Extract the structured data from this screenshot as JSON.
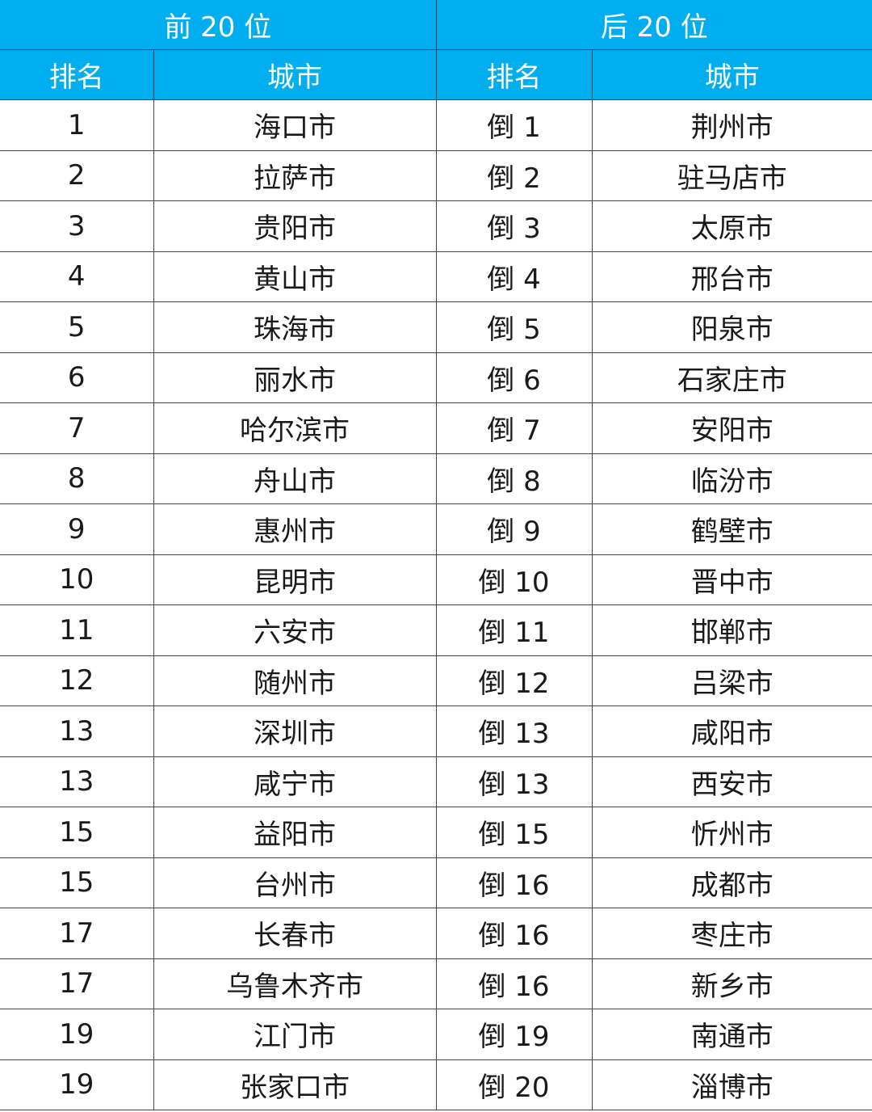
{
  "header": {
    "top_group": "前 20 位",
    "bottom_group": "后 20 位",
    "rank": "排名",
    "city": "城市"
  },
  "colors": {
    "header_bg": "#00aeef",
    "header_text": "#ffffff"
  },
  "rows": [
    {
      "top_rank": "1",
      "top_city": "海口市",
      "bottom_rank": "倒 1",
      "bottom_city": "荆州市"
    },
    {
      "top_rank": "2",
      "top_city": "拉萨市",
      "bottom_rank": "倒 2",
      "bottom_city": "驻马店市"
    },
    {
      "top_rank": "3",
      "top_city": "贵阳市",
      "bottom_rank": "倒 3",
      "bottom_city": "太原市"
    },
    {
      "top_rank": "4",
      "top_city": "黄山市",
      "bottom_rank": "倒 4",
      "bottom_city": "邢台市"
    },
    {
      "top_rank": "5",
      "top_city": "珠海市",
      "bottom_rank": "倒 5",
      "bottom_city": "阳泉市"
    },
    {
      "top_rank": "6",
      "top_city": "丽水市",
      "bottom_rank": "倒 6",
      "bottom_city": "石家庄市"
    },
    {
      "top_rank": "7",
      "top_city": "哈尔滨市",
      "bottom_rank": "倒 7",
      "bottom_city": "安阳市"
    },
    {
      "top_rank": "8",
      "top_city": "舟山市",
      "bottom_rank": "倒 8",
      "bottom_city": "临汾市"
    },
    {
      "top_rank": "9",
      "top_city": "惠州市",
      "bottom_rank": "倒 9",
      "bottom_city": "鹤壁市"
    },
    {
      "top_rank": "10",
      "top_city": "昆明市",
      "bottom_rank": "倒 10",
      "bottom_city": "晋中市"
    },
    {
      "top_rank": "11",
      "top_city": "六安市",
      "bottom_rank": "倒 11",
      "bottom_city": "邯郸市"
    },
    {
      "top_rank": "12",
      "top_city": "随州市",
      "bottom_rank": "倒 12",
      "bottom_city": "吕梁市"
    },
    {
      "top_rank": "13",
      "top_city": "深圳市",
      "bottom_rank": "倒 13",
      "bottom_city": "咸阳市"
    },
    {
      "top_rank": "13",
      "top_city": "咸宁市",
      "bottom_rank": "倒 13",
      "bottom_city": "西安市"
    },
    {
      "top_rank": "15",
      "top_city": "益阳市",
      "bottom_rank": "倒 15",
      "bottom_city": "忻州市"
    },
    {
      "top_rank": "15",
      "top_city": "台州市",
      "bottom_rank": "倒 16",
      "bottom_city": "成都市"
    },
    {
      "top_rank": "17",
      "top_city": "长春市",
      "bottom_rank": "倒 16",
      "bottom_city": "枣庄市"
    },
    {
      "top_rank": "17",
      "top_city": "乌鲁木齐市",
      "bottom_rank": "倒 16",
      "bottom_city": "新乡市"
    },
    {
      "top_rank": "19",
      "top_city": "江门市",
      "bottom_rank": "倒 19",
      "bottom_city": "南通市"
    },
    {
      "top_rank": "19",
      "top_city": "张家口市",
      "bottom_rank": "倒 20",
      "bottom_city": "淄博市"
    }
  ]
}
